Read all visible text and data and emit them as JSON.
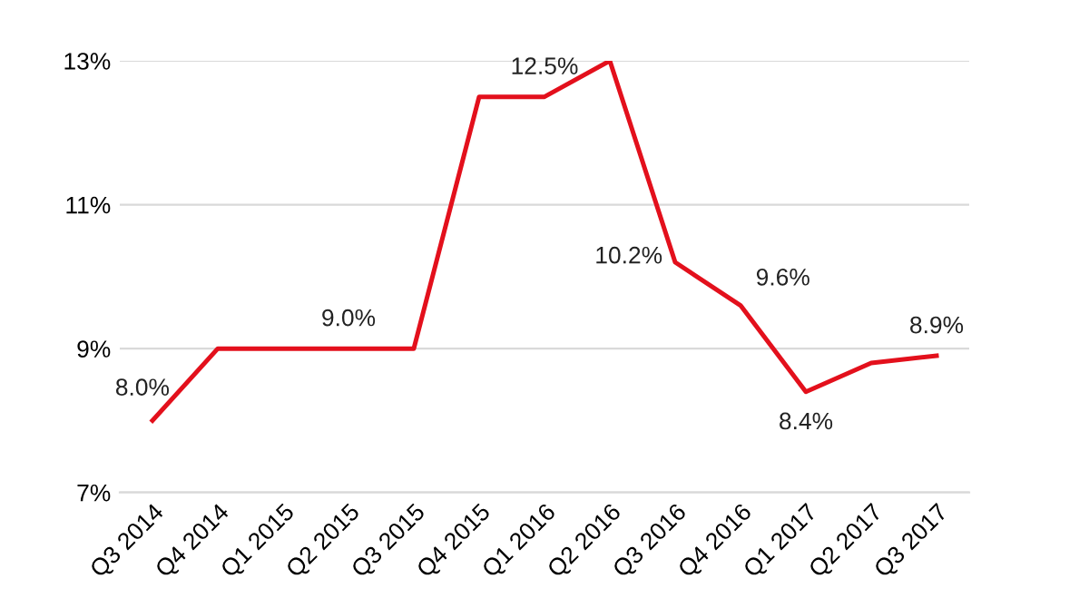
{
  "chart_data": {
    "type": "line",
    "categories": [
      "Q3 2014",
      "Q4 2014",
      "Q1 2015",
      "Q2 2015",
      "Q3 2015",
      "Q4 2015",
      "Q1 2016",
      "Q2 2016",
      "Q3 2016",
      "Q4 2016",
      "Q1 2017",
      "Q2 2017",
      "Q3 2017"
    ],
    "series": [
      {
        "color": "#e3101c",
        "values": [
          8.0,
          9.0,
          9.0,
          9.0,
          9.0,
          12.5,
          12.5,
          13.0,
          10.2,
          9.6,
          8.4,
          8.8,
          8.9
        ],
        "value_labels": [
          "8.0%",
          null,
          null,
          "9.0%",
          null,
          null,
          "12.5%",
          null,
          "10.2%",
          "9.6%",
          "8.4%",
          null,
          "8.9%"
        ]
      }
    ],
    "ylim": [
      7,
      13
    ],
    "yticks": [
      {
        "value": 7,
        "label": "7%"
      },
      {
        "value": 9,
        "label": "9%"
      },
      {
        "value": 11,
        "label": "11%"
      },
      {
        "value": 13,
        "label": "13%"
      }
    ],
    "grid": "y",
    "legend": false,
    "marker": "none",
    "line_style": "solid"
  }
}
